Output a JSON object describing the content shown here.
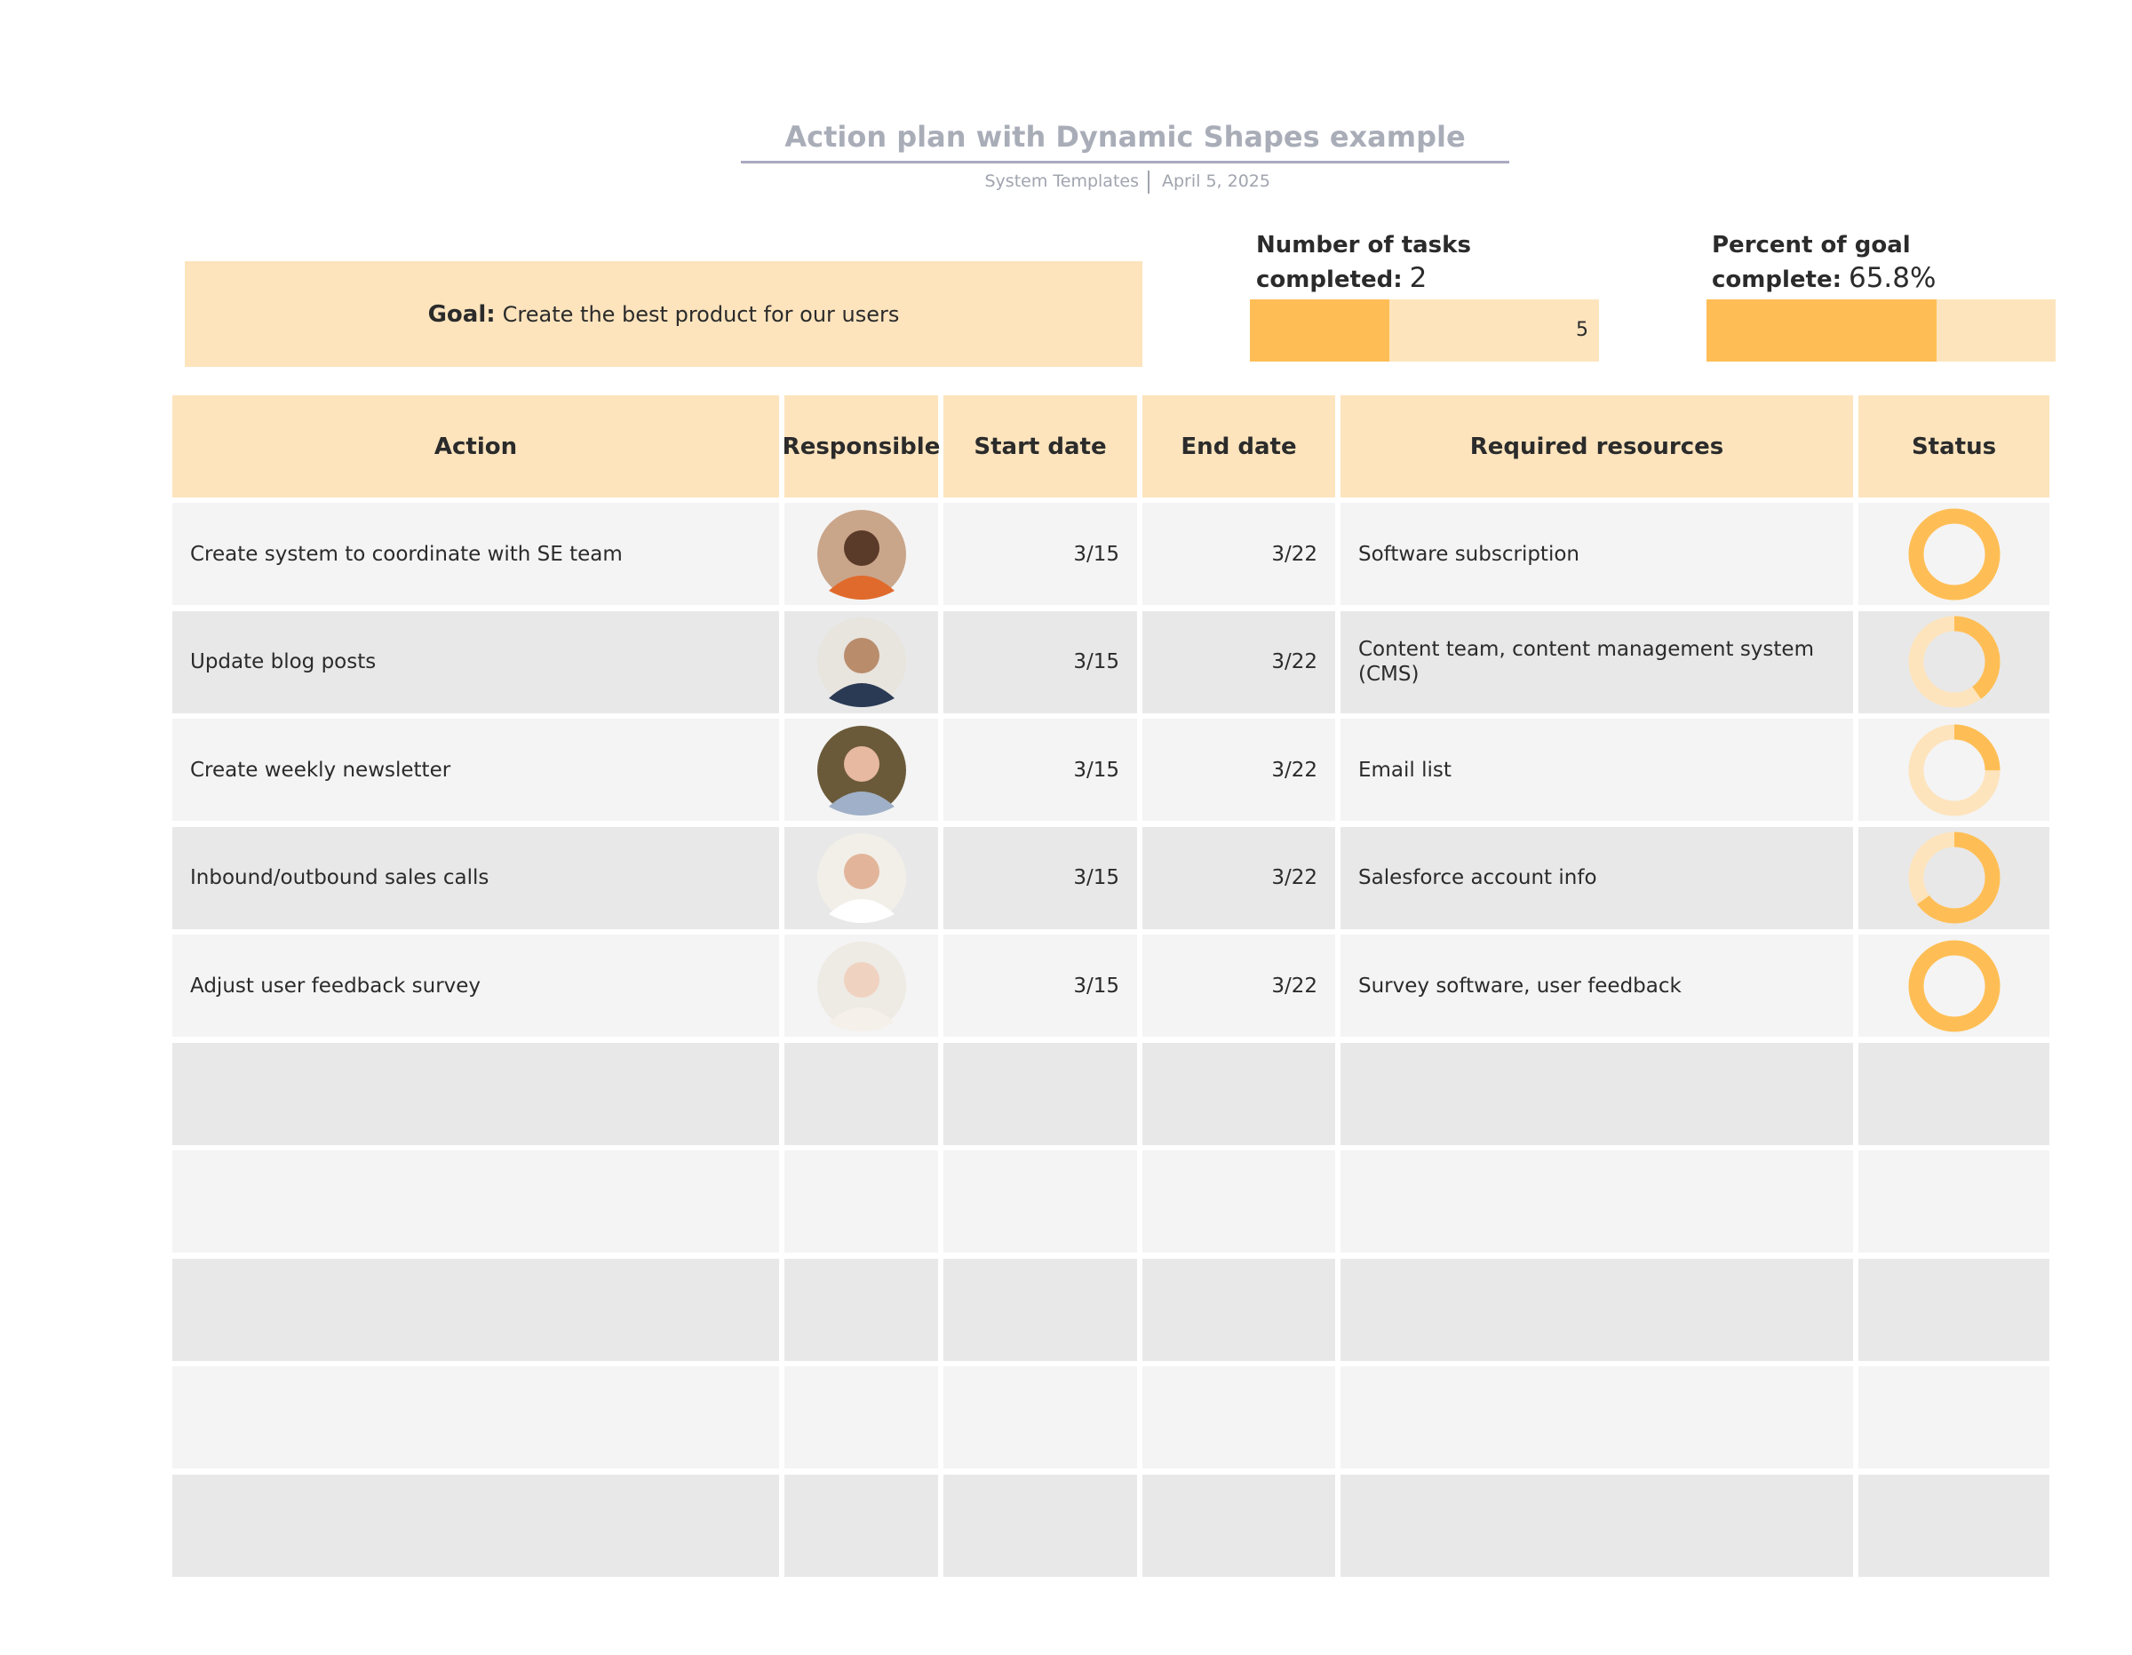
{
  "header": {
    "title": "Action plan with Dynamic Shapes example",
    "source": "System Templates",
    "date": "April 5, 2025"
  },
  "goal": {
    "label": "Goal:",
    "text": "Create the best product for our users"
  },
  "tasks_completed": {
    "label": "Number of tasks completed:",
    "value": 2,
    "max": 5
  },
  "percent_complete": {
    "label": "Percent of goal complete:",
    "value": 65.8,
    "value_label": "65.8%",
    "range": [
      0,
      100
    ]
  },
  "table": {
    "columns": [
      "Action",
      "Responsible",
      "Start date",
      "End date",
      "Required resources",
      "Status"
    ],
    "rows": [
      {
        "action": "Create system to coordinate with SE team",
        "start": "3/15",
        "end": "3/22",
        "resources": "Software subscription",
        "status": 100
      },
      {
        "action": "Update blog posts",
        "start": "3/15",
        "end": "3/22",
        "resources": "Content team, content management system (CMS)",
        "status": 40
      },
      {
        "action": "Create weekly newsletter",
        "start": "3/15",
        "end": "3/22",
        "resources": "Email list",
        "status": 25
      },
      {
        "action": "Inbound/outbound sales calls",
        "start": "3/15",
        "end": "3/22",
        "resources": "Salesforce account info",
        "status": 65
      },
      {
        "action": "Adjust user feedback survey",
        "start": "3/15",
        "end": "3/22",
        "resources": "Survey software, user feedback",
        "status": 100
      }
    ]
  }
}
